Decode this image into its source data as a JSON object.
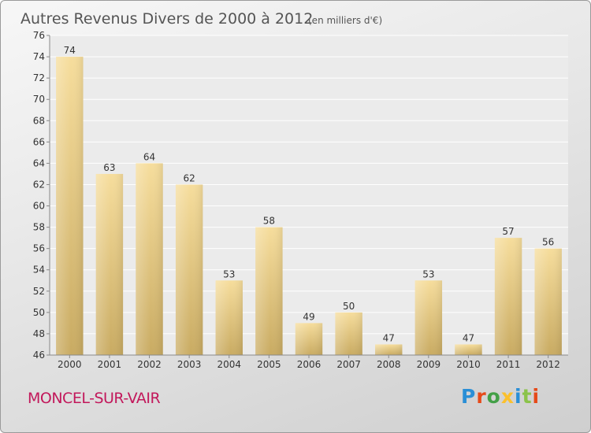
{
  "chart_data": {
    "type": "bar",
    "title": "Autres Revenus Divers de 2000 à 2012",
    "subtitle": "(en milliers d'€)",
    "categories": [
      "2000",
      "2001",
      "2002",
      "2003",
      "2004",
      "2005",
      "2006",
      "2007",
      "2008",
      "2009",
      "2010",
      "2011",
      "2012"
    ],
    "values": [
      74,
      63,
      64,
      62,
      53,
      58,
      49,
      50,
      47,
      53,
      47,
      57,
      56
    ],
    "ylim": [
      46,
      76
    ],
    "yticks": [
      46,
      48,
      50,
      52,
      54,
      56,
      58,
      60,
      62,
      64,
      66,
      68,
      70,
      72,
      74,
      76
    ],
    "grid": true,
    "bar_color": "#e8cd85"
  },
  "location": {
    "name": "MONCEL-SUR-VAIR",
    "color": "#c2185b"
  },
  "logo": {
    "text": "Proxiti",
    "letters": [
      {
        "ch": "P",
        "color": "#2a8fd6"
      },
      {
        "ch": "r",
        "color": "#e64a19"
      },
      {
        "ch": "o",
        "color": "#43a047"
      },
      {
        "ch": "x",
        "color": "#fbc02d"
      },
      {
        "ch": "i",
        "color": "#2a8fd6"
      },
      {
        "ch": "t",
        "color": "#8bc34a"
      },
      {
        "ch": "i",
        "color": "#e64a19"
      }
    ]
  }
}
